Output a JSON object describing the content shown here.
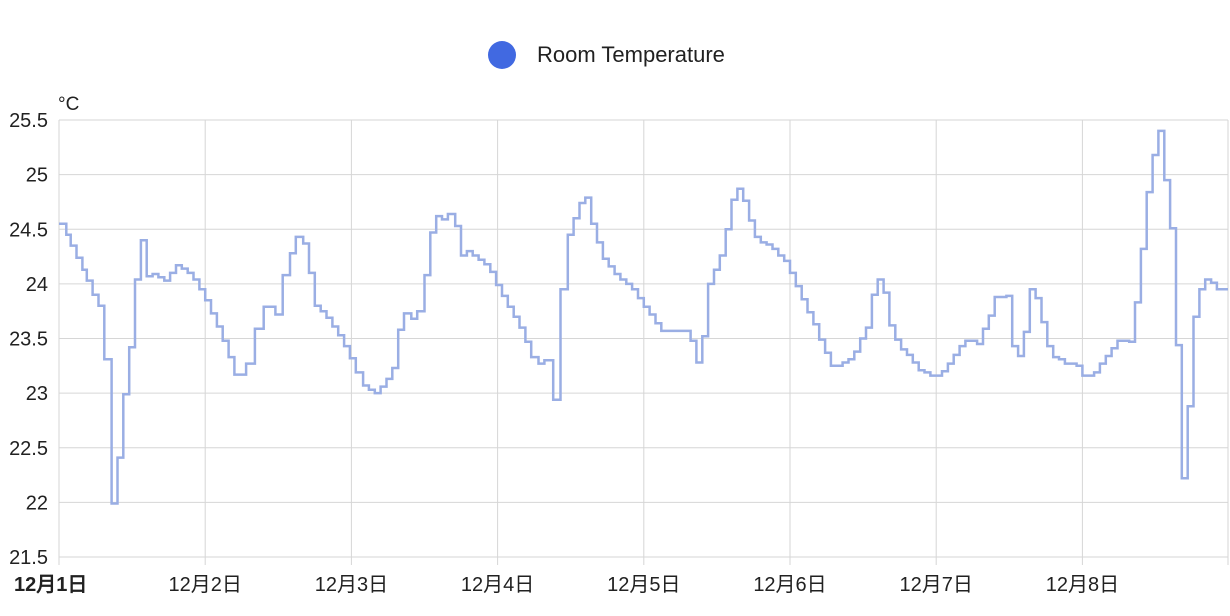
{
  "chart_data": {
    "type": "line",
    "interpolation": "step",
    "grid": true,
    "legend_position": "top-center",
    "ylabel": "°C",
    "ylim": [
      21.5,
      25.5
    ],
    "yticks": [
      "21.5",
      "22",
      "22.5",
      "23",
      "23.5",
      "24",
      "24.5",
      "25",
      "25.5"
    ],
    "xlim": [
      0,
      8
    ],
    "xticks": [
      {
        "value": 0,
        "label": "12月1日",
        "bold": true
      },
      {
        "value": 1,
        "label": "12月2日",
        "bold": false
      },
      {
        "value": 2,
        "label": "12月3日",
        "bold": false
      },
      {
        "value": 3,
        "label": "12月4日",
        "bold": false
      },
      {
        "value": 4,
        "label": "12月5日",
        "bold": false
      },
      {
        "value": 5,
        "label": "12月6日",
        "bold": false
      },
      {
        "value": 6,
        "label": "12月7日",
        "bold": false
      },
      {
        "value": 7,
        "label": "12月8日",
        "bold": false
      }
    ],
    "series": [
      {
        "name": "Room Temperature",
        "color": "#4169e1",
        "line_color": "#9aaee4",
        "points": [
          [
            0.0,
            24.55
          ],
          [
            0.05,
            24.45
          ],
          [
            0.08,
            24.35
          ],
          [
            0.12,
            24.24
          ],
          [
            0.16,
            24.13
          ],
          [
            0.19,
            24.03
          ],
          [
            0.23,
            23.9
          ],
          [
            0.27,
            23.8
          ],
          [
            0.31,
            23.31
          ],
          [
            0.36,
            21.99
          ],
          [
            0.4,
            22.41
          ],
          [
            0.44,
            22.99
          ],
          [
            0.48,
            23.42
          ],
          [
            0.52,
            24.04
          ],
          [
            0.56,
            24.4
          ],
          [
            0.6,
            24.07
          ],
          [
            0.64,
            24.09
          ],
          [
            0.68,
            24.06
          ],
          [
            0.72,
            24.03
          ],
          [
            0.76,
            24.1
          ],
          [
            0.8,
            24.17
          ],
          [
            0.84,
            24.14
          ],
          [
            0.88,
            24.1
          ],
          [
            0.92,
            24.04
          ],
          [
            0.96,
            23.95
          ],
          [
            1.0,
            23.85
          ],
          [
            1.04,
            23.73
          ],
          [
            1.08,
            23.61
          ],
          [
            1.12,
            23.48
          ],
          [
            1.16,
            23.33
          ],
          [
            1.2,
            23.17
          ],
          [
            1.28,
            23.27
          ],
          [
            1.34,
            23.59
          ],
          [
            1.4,
            23.79
          ],
          [
            1.48,
            23.72
          ],
          [
            1.53,
            24.08
          ],
          [
            1.58,
            24.28
          ],
          [
            1.62,
            24.43
          ],
          [
            1.67,
            24.37
          ],
          [
            1.71,
            24.1
          ],
          [
            1.75,
            23.8
          ],
          [
            1.79,
            23.75
          ],
          [
            1.83,
            23.69
          ],
          [
            1.87,
            23.61
          ],
          [
            1.91,
            23.53
          ],
          [
            1.95,
            23.43
          ],
          [
            1.99,
            23.32
          ],
          [
            2.03,
            23.19
          ],
          [
            2.08,
            23.07
          ],
          [
            2.12,
            23.03
          ],
          [
            2.16,
            23.0
          ],
          [
            2.2,
            23.06
          ],
          [
            2.24,
            23.13
          ],
          [
            2.28,
            23.23
          ],
          [
            2.32,
            23.58
          ],
          [
            2.36,
            23.73
          ],
          [
            2.41,
            23.68
          ],
          [
            2.45,
            23.75
          ],
          [
            2.5,
            24.08
          ],
          [
            2.54,
            24.47
          ],
          [
            2.58,
            24.62
          ],
          [
            2.62,
            24.59
          ],
          [
            2.66,
            24.64
          ],
          [
            2.71,
            24.53
          ],
          [
            2.75,
            24.26
          ],
          [
            2.79,
            24.3
          ],
          [
            2.83,
            24.26
          ],
          [
            2.87,
            24.22
          ],
          [
            2.91,
            24.18
          ],
          [
            2.95,
            24.11
          ],
          [
            2.99,
            23.99
          ],
          [
            3.03,
            23.89
          ],
          [
            3.07,
            23.79
          ],
          [
            3.11,
            23.7
          ],
          [
            3.15,
            23.6
          ],
          [
            3.19,
            23.47
          ],
          [
            3.23,
            23.33
          ],
          [
            3.28,
            23.27
          ],
          [
            3.32,
            23.3
          ],
          [
            3.38,
            22.94
          ],
          [
            3.43,
            23.95
          ],
          [
            3.48,
            24.45
          ],
          [
            3.52,
            24.6
          ],
          [
            3.56,
            24.74
          ],
          [
            3.6,
            24.79
          ],
          [
            3.64,
            24.55
          ],
          [
            3.68,
            24.38
          ],
          [
            3.72,
            24.23
          ],
          [
            3.76,
            24.16
          ],
          [
            3.8,
            24.09
          ],
          [
            3.84,
            24.04
          ],
          [
            3.88,
            24.0
          ],
          [
            3.92,
            23.95
          ],
          [
            3.96,
            23.87
          ],
          [
            4.0,
            23.79
          ],
          [
            4.04,
            23.72
          ],
          [
            4.08,
            23.64
          ],
          [
            4.12,
            23.57
          ],
          [
            4.2,
            23.57
          ],
          [
            4.28,
            23.57
          ],
          [
            4.32,
            23.48
          ],
          [
            4.36,
            23.28
          ],
          [
            4.4,
            23.52
          ],
          [
            4.44,
            24.0
          ],
          [
            4.48,
            24.13
          ],
          [
            4.52,
            24.26
          ],
          [
            4.56,
            24.5
          ],
          [
            4.6,
            24.77
          ],
          [
            4.64,
            24.87
          ],
          [
            4.68,
            24.76
          ],
          [
            4.72,
            24.58
          ],
          [
            4.76,
            24.43
          ],
          [
            4.8,
            24.38
          ],
          [
            4.84,
            24.36
          ],
          [
            4.88,
            24.32
          ],
          [
            4.92,
            24.26
          ],
          [
            4.96,
            24.21
          ],
          [
            5.0,
            24.1
          ],
          [
            5.04,
            23.98
          ],
          [
            5.08,
            23.86
          ],
          [
            5.12,
            23.74
          ],
          [
            5.16,
            23.63
          ],
          [
            5.2,
            23.49
          ],
          [
            5.24,
            23.37
          ],
          [
            5.28,
            23.25
          ],
          [
            5.36,
            23.28
          ],
          [
            5.4,
            23.31
          ],
          [
            5.44,
            23.38
          ],
          [
            5.48,
            23.5
          ],
          [
            5.52,
            23.6
          ],
          [
            5.56,
            23.9
          ],
          [
            5.6,
            24.04
          ],
          [
            5.64,
            23.92
          ],
          [
            5.68,
            23.62
          ],
          [
            5.72,
            23.49
          ],
          [
            5.76,
            23.4
          ],
          [
            5.8,
            23.35
          ],
          [
            5.84,
            23.28
          ],
          [
            5.88,
            23.21
          ],
          [
            5.92,
            23.19
          ],
          [
            5.96,
            23.16
          ],
          [
            6.04,
            23.2
          ],
          [
            6.08,
            23.27
          ],
          [
            6.12,
            23.35
          ],
          [
            6.16,
            23.43
          ],
          [
            6.2,
            23.48
          ],
          [
            6.28,
            23.45
          ],
          [
            6.32,
            23.59
          ],
          [
            6.36,
            23.71
          ],
          [
            6.4,
            23.88
          ],
          [
            6.48,
            23.89
          ],
          [
            6.52,
            23.43
          ],
          [
            6.56,
            23.34
          ],
          [
            6.6,
            23.56
          ],
          [
            6.64,
            23.95
          ],
          [
            6.68,
            23.87
          ],
          [
            6.72,
            23.65
          ],
          [
            6.76,
            23.43
          ],
          [
            6.8,
            23.33
          ],
          [
            6.84,
            23.31
          ],
          [
            6.88,
            23.27
          ],
          [
            6.96,
            23.25
          ],
          [
            7.0,
            23.16
          ],
          [
            7.08,
            23.19
          ],
          [
            7.12,
            23.27
          ],
          [
            7.16,
            23.34
          ],
          [
            7.2,
            23.41
          ],
          [
            7.24,
            23.48
          ],
          [
            7.32,
            23.47
          ],
          [
            7.36,
            23.83
          ],
          [
            7.4,
            24.32
          ],
          [
            7.44,
            24.84
          ],
          [
            7.48,
            25.18
          ],
          [
            7.52,
            25.4
          ],
          [
            7.56,
            24.95
          ],
          [
            7.6,
            24.51
          ],
          [
            7.64,
            23.44
          ],
          [
            7.68,
            22.22
          ],
          [
            7.72,
            22.88
          ],
          [
            7.76,
            23.7
          ],
          [
            7.8,
            23.95
          ],
          [
            7.84,
            24.04
          ],
          [
            7.88,
            24.01
          ],
          [
            7.92,
            23.95
          ],
          [
            7.96,
            23.95
          ]
        ]
      }
    ]
  }
}
